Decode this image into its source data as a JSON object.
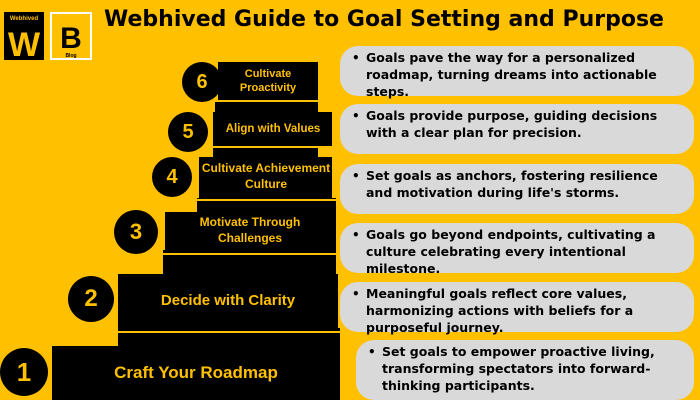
{
  "header": {
    "title": "Webhived Guide to Goal Setting and Purpose",
    "logo_w_text": "Webhived",
    "logo_b_text": "Blog"
  },
  "steps": [
    {
      "number": "1",
      "label": "Craft Your Roadmap",
      "description": "Set goals to empower proactive living, transforming spectators into forward-thinking participants."
    },
    {
      "number": "2",
      "label": "Decide with Clarity",
      "description": "Meaningful goals reflect core values, harmonizing actions with beliefs for a purposeful journey."
    },
    {
      "number": "3",
      "label": "Motivate Through Challenges",
      "description": "Goals go beyond endpoints, cultivating a culture celebrating every intentional milestone."
    },
    {
      "number": "4",
      "label": "Cultivate Achievement Culture",
      "description": "Set goals as anchors, fostering resilience and motivation during life's storms."
    },
    {
      "number": "5",
      "label": "Align with Values",
      "description": "Goals provide purpose, guiding decisions with a clear plan for precision."
    },
    {
      "number": "6",
      "label": "Cultivate Proactivity",
      "description": "Goals pave the way for a personalized roadmap, turning dreams into actionable steps."
    }
  ],
  "colors": {
    "background": "#FFC000",
    "stair": "#000000",
    "bubble": "#D9D9D9",
    "accent_text": "#FFC000"
  }
}
